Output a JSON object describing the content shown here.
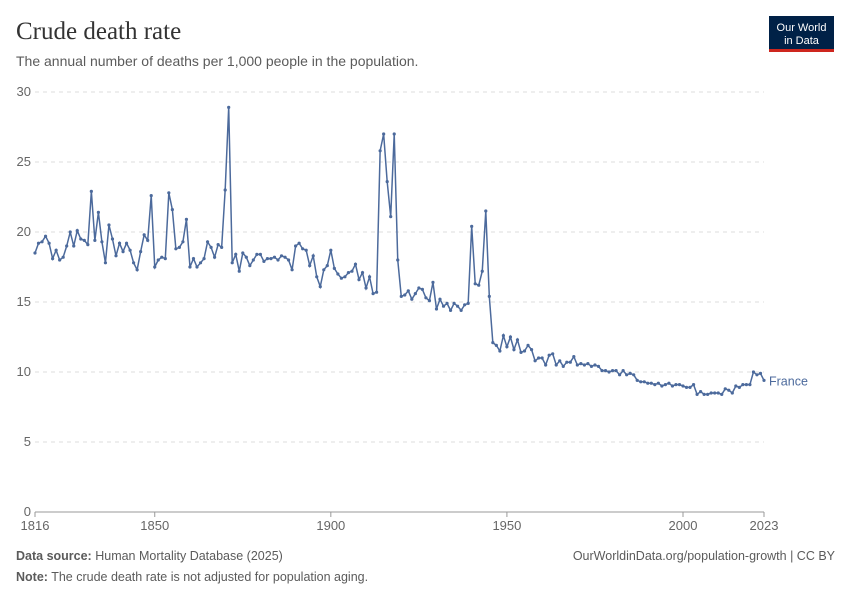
{
  "chart_data": {
    "type": "line",
    "title": "Crude death rate",
    "subtitle": "The annual number of deaths per 1,000 people in the population.",
    "logo": [
      "Our World",
      "in Data"
    ],
    "source_label": "Data source:",
    "source": "Human Mortality Database (2025)",
    "url": "OurWorldinData.org/population-growth | CC BY",
    "note_label": "Note:",
    "note": "The crude death rate is not adjusted for population aging.",
    "x": [
      1816,
      1817,
      1818,
      1819,
      1820,
      1821,
      1822,
      1823,
      1824,
      1825,
      1826,
      1827,
      1828,
      1829,
      1830,
      1831,
      1832,
      1833,
      1834,
      1835,
      1836,
      1837,
      1838,
      1839,
      1840,
      1841,
      1842,
      1843,
      1844,
      1845,
      1846,
      1847,
      1848,
      1849,
      1850,
      1851,
      1852,
      1853,
      1854,
      1855,
      1856,
      1857,
      1858,
      1859,
      1860,
      1861,
      1862,
      1863,
      1864,
      1865,
      1866,
      1867,
      1868,
      1869,
      1870,
      1871,
      1872,
      1873,
      1874,
      1875,
      1876,
      1877,
      1878,
      1879,
      1880,
      1881,
      1882,
      1883,
      1884,
      1885,
      1886,
      1887,
      1888,
      1889,
      1890,
      1891,
      1892,
      1893,
      1894,
      1895,
      1896,
      1897,
      1898,
      1899,
      1900,
      1901,
      1902,
      1903,
      1904,
      1905,
      1906,
      1907,
      1908,
      1909,
      1910,
      1911,
      1912,
      1913,
      1914,
      1915,
      1916,
      1917,
      1918,
      1919,
      1920,
      1921,
      1922,
      1923,
      1924,
      1925,
      1926,
      1927,
      1928,
      1929,
      1930,
      1931,
      1932,
      1933,
      1934,
      1935,
      1936,
      1937,
      1938,
      1939,
      1940,
      1941,
      1942,
      1943,
      1944,
      1945,
      1946,
      1947,
      1948,
      1949,
      1950,
      1951,
      1952,
      1953,
      1954,
      1955,
      1956,
      1957,
      1958,
      1959,
      1960,
      1961,
      1962,
      1963,
      1964,
      1965,
      1966,
      1967,
      1968,
      1969,
      1970,
      1971,
      1972,
      1973,
      1974,
      1975,
      1976,
      1977,
      1978,
      1979,
      1980,
      1981,
      1982,
      1983,
      1984,
      1985,
      1986,
      1987,
      1988,
      1989,
      1990,
      1991,
      1992,
      1993,
      1994,
      1995,
      1996,
      1997,
      1998,
      1999,
      2000,
      2001,
      2002,
      2003,
      2004,
      2005,
      2006,
      2007,
      2008,
      2009,
      2010,
      2011,
      2012,
      2013,
      2014,
      2015,
      2016,
      2017,
      2018,
      2019,
      2020,
      2021,
      2022,
      2023
    ],
    "series": [
      {
        "name": "France",
        "color": "#4c6a9c",
        "values": [
          18.5,
          19.2,
          19.3,
          19.7,
          19.2,
          18.1,
          18.7,
          18.0,
          18.2,
          19.0,
          20.0,
          19.0,
          20.1,
          19.5,
          19.4,
          19.1,
          22.9,
          19.4,
          21.4,
          19.3,
          17.8,
          20.5,
          19.5,
          18.3,
          19.2,
          18.6,
          19.2,
          18.7,
          17.8,
          17.3,
          18.6,
          19.8,
          19.4,
          22.6,
          17.5,
          18.0,
          18.2,
          18.1,
          22.8,
          21.6,
          18.8,
          18.9,
          19.3,
          20.9,
          17.5,
          18.1,
          17.5,
          17.8,
          18.1,
          19.3,
          18.9,
          18.2,
          19.1,
          18.9,
          23.0,
          28.9,
          17.8,
          18.4,
          17.2,
          18.5,
          18.2,
          17.6,
          18.0,
          18.4,
          18.4,
          17.9,
          18.1,
          18.1,
          18.2,
          18.0,
          18.3,
          18.2,
          18.0,
          17.3,
          19.0,
          19.2,
          18.8,
          18.7,
          17.6,
          18.3,
          16.8,
          16.1,
          17.3,
          17.6,
          18.7,
          17.4,
          17.0,
          16.7,
          16.8,
          17.1,
          17.2,
          17.7,
          16.6,
          17.1,
          16.0,
          16.8,
          15.6,
          15.7,
          25.8,
          27.0,
          23.6,
          21.1,
          27.0,
          18.0,
          15.4,
          15.5,
          15.8,
          15.2,
          15.6,
          16.0,
          15.9,
          15.3,
          15.1,
          16.4,
          14.5,
          15.2,
          14.7,
          14.9,
          14.4,
          14.9,
          14.7,
          14.4,
          14.8,
          14.9,
          20.4,
          16.3,
          16.2,
          17.2,
          21.5,
          15.4,
          12.1,
          11.9,
          11.5,
          12.6,
          11.8,
          12.5,
          11.6,
          12.3,
          11.4,
          11.5,
          11.9,
          11.6,
          10.8,
          11.0,
          11.0,
          10.5,
          11.2,
          11.3,
          10.5,
          10.8,
          10.4,
          10.7,
          10.7,
          11.1,
          10.5,
          10.6,
          10.5,
          10.6,
          10.4,
          10.5,
          10.4,
          10.1,
          10.1,
          10.0,
          10.1,
          10.1,
          9.8,
          10.1,
          9.8,
          9.9,
          9.8,
          9.4,
          9.3,
          9.3,
          9.2,
          9.2,
          9.1,
          9.2,
          9.0,
          9.1,
          9.2,
          9.0,
          9.1,
          9.1,
          9.0,
          8.9,
          8.9,
          9.1,
          8.4,
          8.6,
          8.4,
          8.4,
          8.5,
          8.5,
          8.5,
          8.4,
          8.8,
          8.7,
          8.5,
          9.0,
          8.9,
          9.1,
          9.1,
          9.1,
          10.0,
          9.8,
          9.9,
          9.4
        ]
      }
    ],
    "xlim": [
      1816,
      2023
    ],
    "xticks": [
      1816,
      1850,
      1900,
      1950,
      2000,
      2023
    ],
    "ylim": [
      0,
      30
    ],
    "yticks": [
      0,
      5,
      10,
      15,
      20,
      25,
      30
    ],
    "grid": true
  }
}
